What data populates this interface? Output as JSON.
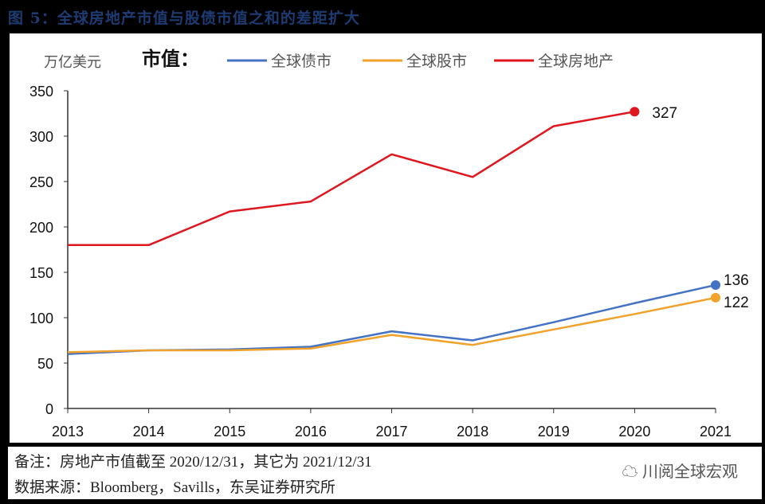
{
  "title": "图 5：全球房地产市值与股债市值之和的差距扩大",
  "footer": {
    "note": "备注：房地产市值截至 2020/12/31，其它为 2021/12/31",
    "source": "数据来源：Bloomberg，Savills，东吴证券研究所",
    "watermark": "川阅全球宏观"
  },
  "chart_data": {
    "type": "line",
    "title": "市值：",
    "ylabel": "万亿美元",
    "xlabel": "",
    "x": [
      "2013",
      "2014",
      "2015",
      "2016",
      "2017",
      "2018",
      "2019",
      "2020",
      "2021"
    ],
    "ylim": [
      0,
      350
    ],
    "yticks": [
      0,
      50,
      100,
      150,
      200,
      250,
      300,
      350
    ],
    "grid": false,
    "legend_position": "top",
    "series": [
      {
        "name": "全球债市",
        "color": "#4472c4",
        "values": [
          60,
          64,
          65,
          68,
          85,
          75,
          95,
          116,
          136
        ],
        "end_label": "136"
      },
      {
        "name": "全球股市",
        "color": "#f0a22b",
        "values": [
          62,
          64,
          64,
          66,
          81,
          70,
          87,
          104,
          122
        ],
        "end_label": "122"
      },
      {
        "name": "全球房地产",
        "color": "#e0161e",
        "values": [
          180,
          180,
          217,
          228,
          280,
          255,
          311,
          327,
          null
        ],
        "end_label": "327"
      }
    ]
  }
}
